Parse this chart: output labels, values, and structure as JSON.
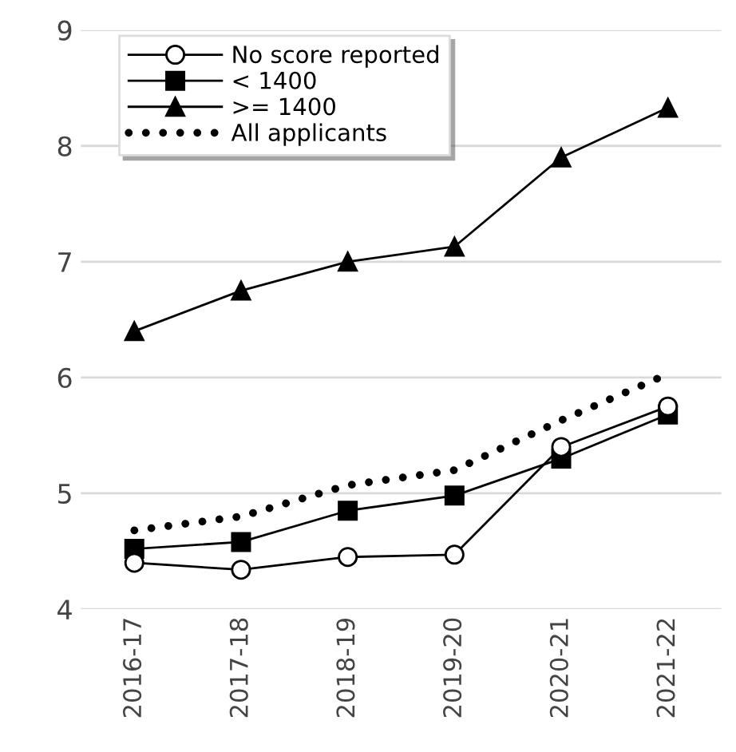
{
  "chart_data": {
    "type": "line",
    "categories": [
      "2016-17",
      "2017-18",
      "2018-19",
      "2019-20",
      "2020-21",
      "2021-22"
    ],
    "series": [
      {
        "name": "No score reported",
        "color": "#000000",
        "marker": "circle",
        "line_style": "solid",
        "values": [
          4.4,
          4.34,
          4.45,
          4.47,
          5.4,
          5.75
        ]
      },
      {
        "name": "< 1400",
        "color": "#000000",
        "marker": "square",
        "line_style": "solid",
        "values": [
          4.52,
          4.58,
          4.85,
          4.98,
          5.3,
          5.68
        ]
      },
      {
        "name": ">= 1400",
        "color": "#000000",
        "marker": "triangle",
        "line_style": "solid",
        "values": [
          6.4,
          6.75,
          7.0,
          7.13,
          7.9,
          8.33
        ]
      },
      {
        "name": "All applicants",
        "color": "#000000",
        "marker": "none",
        "line_style": "dotted",
        "values": [
          4.68,
          4.8,
          5.07,
          5.2,
          5.63,
          6.03
        ]
      }
    ],
    "ylim": [
      4,
      9
    ],
    "yticks": [
      4,
      5,
      6,
      7,
      8,
      9
    ],
    "grid": "y",
    "legend": "top left"
  }
}
